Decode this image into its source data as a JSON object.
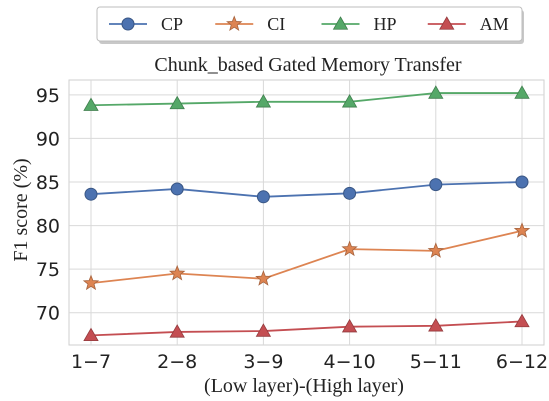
{
  "chart_data": {
    "type": "line",
    "title": "Chunk_based Gated Memory Transfer",
    "xlabel": "(Low layer)-(High layer)",
    "ylabel": "F1 score (%)",
    "categories": [
      "1−7",
      "2−8",
      "3−9",
      "4−10",
      "5−11",
      "6−12"
    ],
    "yticks": [
      70,
      75,
      80,
      85,
      90,
      95
    ],
    "ylim": [
      66.3,
      96.7
    ],
    "grid": true,
    "legend_position": "top-center",
    "series": [
      {
        "name": "CP",
        "values": [
          83.6,
          84.2,
          83.3,
          83.7,
          84.7,
          85.0
        ],
        "color": "#4c72b0",
        "marker": "circle"
      },
      {
        "name": "CI",
        "values": [
          73.4,
          74.5,
          73.9,
          77.3,
          77.1,
          79.4
        ],
        "color": "#dd8452",
        "marker": "star"
      },
      {
        "name": "HP",
        "values": [
          93.8,
          94.0,
          94.2,
          94.2,
          95.2,
          95.2
        ],
        "color": "#55a868",
        "marker": "triangle"
      },
      {
        "name": "AM",
        "values": [
          67.4,
          67.8,
          67.9,
          68.4,
          68.5,
          69.0
        ],
        "color": "#c44e52",
        "marker": "triangle"
      }
    ]
  }
}
